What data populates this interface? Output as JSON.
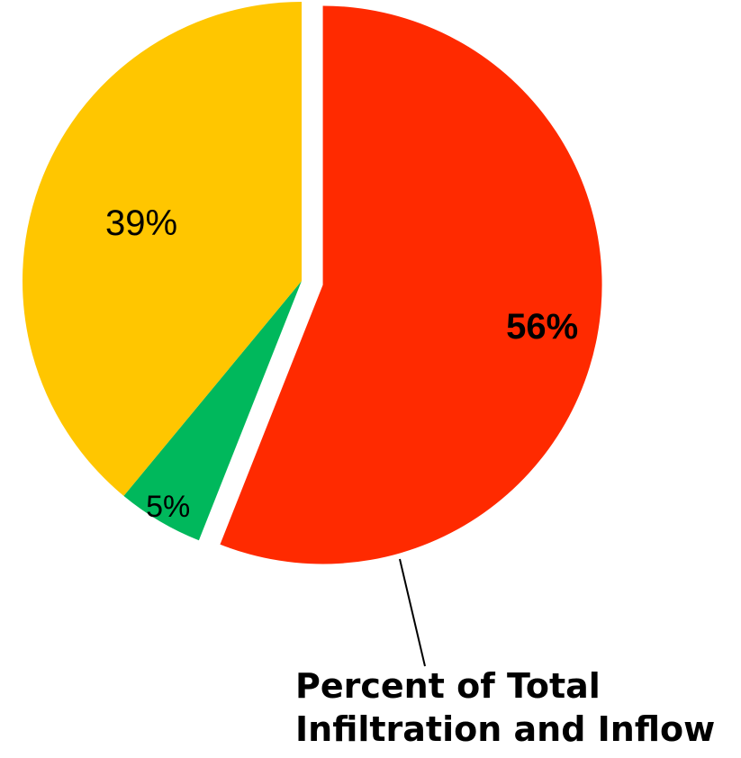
{
  "chart_data": {
    "type": "pie",
    "slices": [
      {
        "label": "56%",
        "value": 56,
        "color": "#ff2a00",
        "exploded": true
      },
      {
        "label": "5%",
        "value": 5,
        "color": "#00b85c",
        "exploded": false
      },
      {
        "label": "39%",
        "value": 39,
        "color": "#ffc600",
        "exploded": false
      }
    ],
    "start_angle_deg": 0,
    "direction": "clockwise",
    "annotation": {
      "lines": [
        "Percent of Total",
        "Infiltration and Inflow"
      ],
      "points_to": "56%"
    }
  }
}
